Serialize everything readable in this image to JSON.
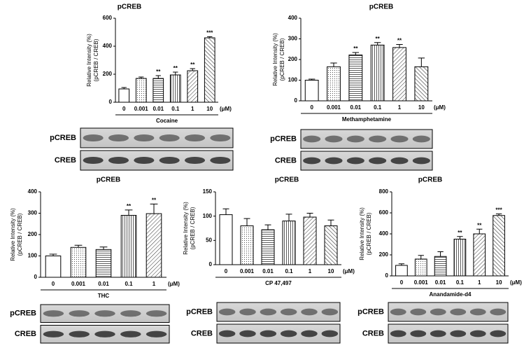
{
  "chart_data": [
    {
      "type": "bar",
      "title": "pCREB",
      "ylabel": [
        "Relative Intensity (%)",
        "(pCREB / CREB)"
      ],
      "xlabel": "Cocaine",
      "unit": "(μM)",
      "categories": [
        "0",
        "0.001",
        "0.01",
        "0.1",
        "1",
        "10"
      ],
      "values": [
        95,
        170,
        170,
        195,
        225,
        460
      ],
      "errors": [
        10,
        10,
        20,
        20,
        15,
        8
      ],
      "significance": [
        null,
        null,
        "**",
        "**",
        "**",
        "***"
      ],
      "ylim": [
        0,
        600
      ],
      "yticks": [
        0,
        200,
        400,
        600
      ],
      "blot_labels": [
        "pCREB",
        "CREB"
      ]
    },
    {
      "type": "bar",
      "title": "pCREB",
      "ylabel": [
        "Relative Intensity (%)",
        "(pCREB / CREB)"
      ],
      "xlabel": "Methamphetamine",
      "unit": "(μM)",
      "categories": [
        "0",
        "0.001",
        "0.01",
        "0.1",
        "1",
        "10"
      ],
      "values": [
        100,
        165,
        222,
        270,
        258,
        165
      ],
      "errors": [
        5,
        18,
        12,
        12,
        15,
        42
      ],
      "significance": [
        null,
        null,
        "**",
        "**",
        "**",
        null
      ],
      "ylim": [
        0,
        400
      ],
      "yticks": [
        0,
        100,
        200,
        300,
        400
      ],
      "blot_labels": [
        "pCREB",
        "CREB"
      ]
    },
    {
      "type": "bar",
      "title": "pCREB",
      "ylabel": [
        "Relative Intensity (%)",
        "(pCREB / CREB)"
      ],
      "xlabel": "THC",
      "unit": "(μM)",
      "categories": [
        "0",
        "0.001",
        "0.01",
        "0.1",
        "1"
      ],
      "values": [
        100,
        140,
        130,
        290,
        298
      ],
      "errors": [
        8,
        10,
        12,
        25,
        45
      ],
      "significance": [
        null,
        null,
        null,
        "**",
        "**"
      ],
      "ylim": [
        0,
        400
      ],
      "yticks": [
        0,
        100,
        200,
        300,
        400
      ],
      "blot_labels": [
        "pCREB",
        "CREB"
      ]
    },
    {
      "type": "bar",
      "title": "pCREB",
      "ylabel": [
        "Relative Intensity (%)",
        "(pCREB / CREB)"
      ],
      "xlabel": "CP 47,497",
      "unit": "(μM)",
      "categories": [
        "0",
        "0.001",
        "0.01",
        "0.1",
        "1",
        "10"
      ],
      "values": [
        103,
        80,
        72,
        90,
        98,
        80
      ],
      "errors": [
        12,
        15,
        10,
        14,
        8,
        12
      ],
      "significance": [
        null,
        null,
        null,
        null,
        null,
        null
      ],
      "ylim": [
        0,
        150
      ],
      "yticks": [
        0,
        50,
        100,
        150
      ],
      "blot_labels": [
        "pCREB",
        "CREB"
      ]
    },
    {
      "type": "bar",
      "title": "pCREB",
      "ylabel": [
        "Relative Intensity (%)",
        "(pCREB / CREB)"
      ],
      "xlabel": "Anandamide-d4",
      "unit": "(μM)",
      "categories": [
        "0",
        "0.001",
        "0.01",
        "0.1",
        "1",
        "10"
      ],
      "values": [
        100,
        160,
        185,
        350,
        400,
        575
      ],
      "errors": [
        15,
        35,
        45,
        25,
        45,
        15
      ],
      "significance": [
        null,
        null,
        null,
        "**",
        "**",
        "***"
      ],
      "ylim": [
        0,
        800
      ],
      "yticks": [
        0,
        200,
        400,
        600,
        800
      ],
      "blot_labels": [
        "pCREB",
        "CREB"
      ]
    }
  ]
}
